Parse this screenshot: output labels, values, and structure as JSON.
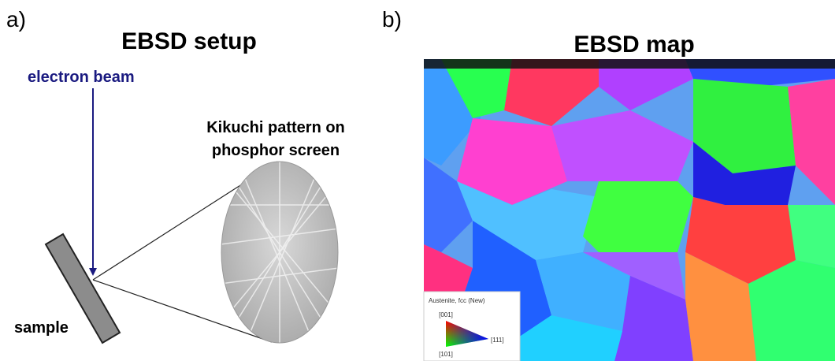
{
  "panels": [
    {
      "label": "a)",
      "title": "EBSD setup",
      "beam_label": "electron beam",
      "pattern_label": [
        "Kikuchi pattern on",
        "phosphor screen"
      ],
      "sample_label": "sample"
    },
    {
      "label": "b)",
      "title": "EBSD map",
      "legend": {
        "title": "Austenite, fcc (New)",
        "corners": [
          "[001]",
          "[101]",
          "[111]"
        ]
      }
    }
  ]
}
